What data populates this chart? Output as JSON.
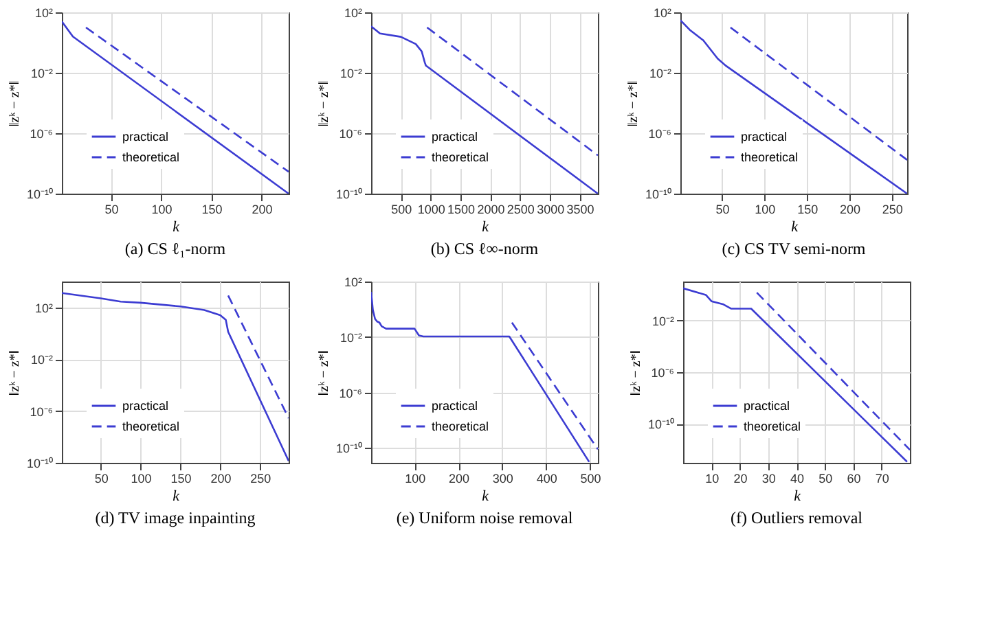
{
  "chart_data": [
    {
      "type": "line",
      "title": "(a) CS ℓ₁-norm",
      "xlabel": "k",
      "ylabel": "‖zᵏ − z*‖",
      "log": "y",
      "grid": true,
      "legend": "bottom left",
      "xlim": [
        1,
        227
      ],
      "ylim": [
        1e-10,
        100
      ],
      "xticks": [
        50,
        100,
        150,
        200
      ],
      "yticks": [
        {
          "value": 100,
          "label": "10²"
        },
        {
          "value": 0.01,
          "label": "10⁻²"
        },
        {
          "value": 1e-06,
          "label": "10⁻⁶"
        },
        {
          "value": 1e-10,
          "label": "10⁻¹⁰"
        }
      ],
      "series": [
        {
          "name": "practical",
          "color": "#3c3cd2",
          "line_style": "solid",
          "x": [
            1,
            12,
            227
          ],
          "values": [
            25,
            2.5,
            1e-10
          ]
        },
        {
          "name": "theoretical",
          "color": "#3c3cd2",
          "line_style": "dashed",
          "x": [
            25,
            227
          ],
          "values": [
            10,
            2.8e-09
          ]
        }
      ]
    },
    {
      "type": "line",
      "title": "(b) CS ℓ∞-norm",
      "xlabel": "k",
      "ylabel": "‖zᵏ − z*‖",
      "log": "y",
      "grid": true,
      "legend": "bottom left",
      "xlim": [
        1,
        3805
      ],
      "ylim": [
        1e-10,
        100
      ],
      "xticks": [
        500,
        1000,
        1500,
        2000,
        2500,
        3000,
        3500
      ],
      "yticks": [
        {
          "value": 100,
          "label": "10²"
        },
        {
          "value": 0.01,
          "label": "10⁻²"
        },
        {
          "value": 1e-06,
          "label": "10⁻⁶"
        },
        {
          "value": 1e-10,
          "label": "10⁻¹⁰"
        }
      ],
      "series": [
        {
          "name": "practical",
          "color": "#3c3cd2",
          "line_style": "solid",
          "x": [
            1,
            150,
            500,
            750,
            850,
            900,
            920,
            3805
          ],
          "values": [
            12,
            4,
            2.4,
            0.8,
            0.26,
            0.05,
            0.03,
            1e-10
          ]
        },
        {
          "name": "theoretical",
          "color": "#3c3cd2",
          "line_style": "dashed",
          "x": [
            940,
            3805
          ],
          "values": [
            10,
            3.4e-08
          ]
        }
      ]
    },
    {
      "type": "line",
      "title": "(c) CS TV semi-norm",
      "xlabel": "k",
      "ylabel": "‖zᵏ − z*‖",
      "log": "y",
      "grid": true,
      "legend": "bottom left",
      "xlim": [
        1,
        268
      ],
      "ylim": [
        1e-10,
        100
      ],
      "xticks": [
        50,
        100,
        150,
        200,
        250
      ],
      "yticks": [
        {
          "value": 100,
          "label": "10²"
        },
        {
          "value": 0.01,
          "label": "10⁻²"
        },
        {
          "value": 1e-06,
          "label": "10⁻⁶"
        },
        {
          "value": 1e-10,
          "label": "10⁻¹⁰"
        }
      ],
      "series": [
        {
          "name": "practical",
          "color": "#3c3cd2",
          "line_style": "solid",
          "x": [
            1,
            12,
            28,
            45,
            55,
            268
          ],
          "values": [
            30,
            7,
            1.4,
            0.085,
            0.028,
            1e-10
          ]
        },
        {
          "name": "theoretical",
          "color": "#3c3cd2",
          "line_style": "dashed",
          "x": [
            60,
            268
          ],
          "values": [
            10,
            1.7e-08
          ]
        }
      ]
    },
    {
      "type": "line",
      "title": "(d) TV image inpainting",
      "xlabel": "k",
      "ylabel": "‖zᵏ − z*‖",
      "log": "y",
      "grid": true,
      "legend": "bottom left",
      "xlim": [
        1,
        286
      ],
      "ylim": [
        1e-10,
        10000
      ],
      "xticks": [
        50,
        100,
        150,
        200,
        250
      ],
      "yticks": [
        {
          "value": 100,
          "label": "10²"
        },
        {
          "value": 0.01,
          "label": "10⁻²"
        },
        {
          "value": 1e-06,
          "label": "10⁻⁶"
        },
        {
          "value": 1e-10,
          "label": "10⁻¹⁰"
        }
      ],
      "series": [
        {
          "name": "practical",
          "color": "#3c3cd2",
          "line_style": "solid",
          "x": [
            1,
            50,
            75,
            100,
            150,
            180,
            200,
            207,
            210,
            213,
            286
          ],
          "values": [
            1300,
            500,
            280,
            230,
            120,
            63,
            25,
            11,
            1.3,
            0.53,
            1.4e-10
          ]
        },
        {
          "name": "theoretical",
          "color": "#3c3cd2",
          "line_style": "dashed",
          "x": [
            210,
            286
          ],
          "values": [
            830,
            2.8e-07
          ]
        }
      ]
    },
    {
      "type": "line",
      "title": "(e) Uniform noise removal",
      "xlabel": "k",
      "ylabel": "‖zᵏ − z*‖",
      "log": "y",
      "grid": true,
      "legend": "bottom left",
      "xlim": [
        1,
        518
      ],
      "ylim": [
        8.5e-12,
        100
      ],
      "xticks": [
        100,
        200,
        300,
        400,
        500
      ],
      "yticks": [
        {
          "value": 100,
          "label": "10²"
        },
        {
          "value": 0.01,
          "label": "10⁻²"
        },
        {
          "value": 1e-06,
          "label": "10⁻⁶"
        },
        {
          "value": 1e-10,
          "label": "10⁻¹⁰"
        }
      ],
      "series": [
        {
          "name": "practical",
          "color": "#3c3cd2",
          "line_style": "solid",
          "x": [
            1,
            5,
            10,
            15,
            20,
            25,
            35,
            100,
            110,
            120,
            316,
            498
          ],
          "values": [
            18,
            0.9,
            0.2,
            0.13,
            0.11,
            0.06,
            0.04,
            0.04,
            0.013,
            0.011,
            0.011,
            1e-11
          ]
        },
        {
          "name": "theoretical",
          "color": "#3c3cd2",
          "line_style": "dashed",
          "x": [
            322,
            518
          ],
          "values": [
            0.11,
            8e-11
          ]
        }
      ]
    },
    {
      "type": "line",
      "title": "(f) Outliers removal",
      "xlabel": "k",
      "ylabel": "‖zᵏ − z*‖",
      "log": "y",
      "grid": true,
      "legend": "bottom left",
      "xlim": [
        0,
        80
      ],
      "ylim": [
        1e-13,
        10
      ],
      "xticks": [
        10,
        20,
        30,
        40,
        50,
        60,
        70
      ],
      "yticks": [
        {
          "value": 0.01,
          "label": "10⁻²"
        },
        {
          "value": 1e-06,
          "label": "10⁻⁶"
        },
        {
          "value": 1e-10,
          "label": "10⁻¹⁰"
        }
      ],
      "series": [
        {
          "name": "practical",
          "color": "#3c3cd2",
          "line_style": "solid",
          "x": [
            0,
            8,
            10,
            14,
            17,
            24,
            79
          ],
          "values": [
            3,
            0.93,
            0.3,
            0.18,
            0.08,
            0.08,
            1.2e-13
          ]
        },
        {
          "name": "theoretical",
          "color": "#3c3cd2",
          "line_style": "dashed",
          "x": [
            26,
            80
          ],
          "values": [
            1.4,
            1e-12
          ]
        }
      ]
    }
  ]
}
